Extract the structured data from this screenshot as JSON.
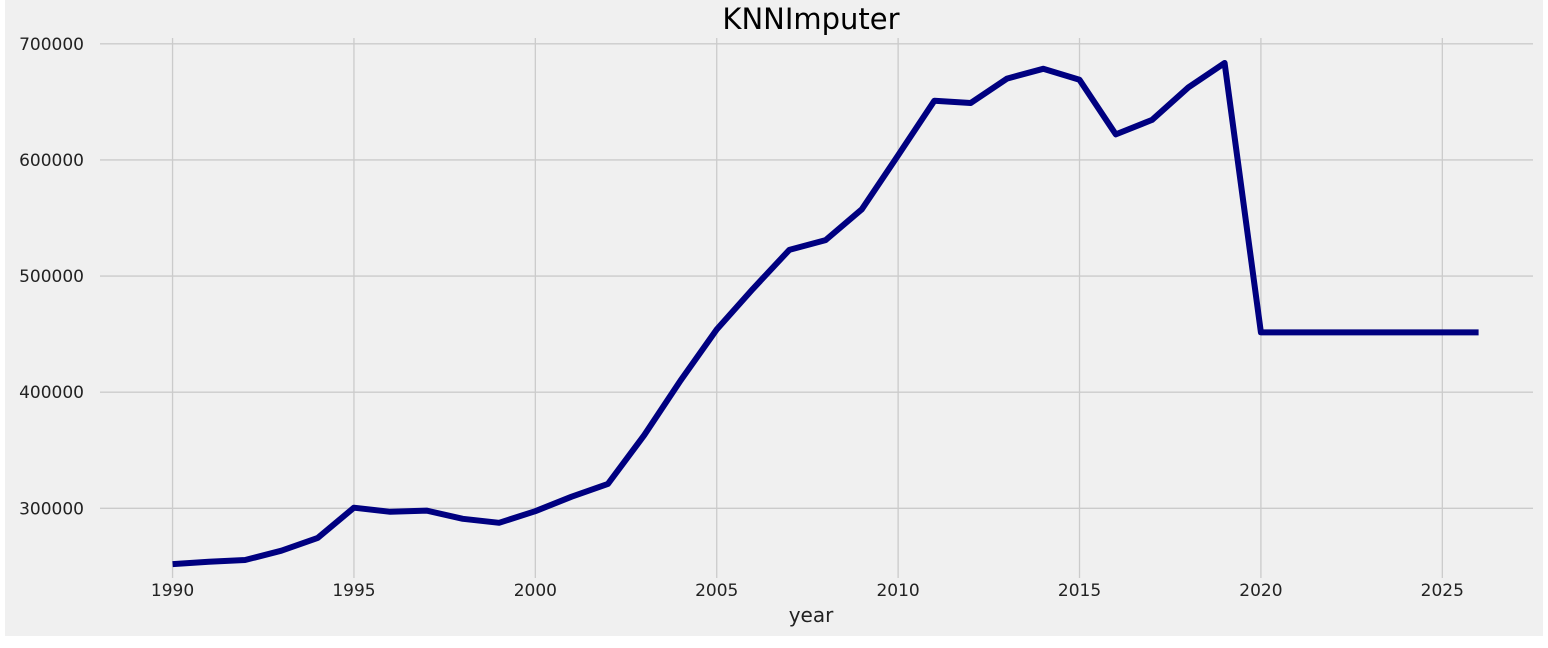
{
  "chart_data": {
    "type": "line",
    "title": "KNNImputer",
    "xlabel": "year",
    "ylabel": "",
    "grid": true,
    "xlim": [
      1988,
      2027.5
    ],
    "ylim": [
      240000,
      705000
    ],
    "xticks": [
      1990,
      1995,
      2000,
      2005,
      2010,
      2015,
      2020,
      2025
    ],
    "xtick_labels": [
      "1990",
      "1995",
      "2000",
      "2005",
      "2010",
      "2015",
      "2020",
      "2025"
    ],
    "yticks": [
      300000,
      400000,
      500000,
      600000,
      700000
    ],
    "ytick_labels": [
      "300000",
      "400000",
      "500000",
      "600000",
      "700000"
    ],
    "series": [
      {
        "color": "#000080",
        "x": [
          1990,
          1991,
          1992,
          1993,
          1994,
          1995,
          1996,
          1997,
          1998,
          1999,
          2000,
          2001,
          2002,
          2003,
          2004,
          2005,
          2006,
          2007,
          2008,
          2009,
          2010,
          2011,
          2012,
          2013,
          2014,
          2015,
          2016,
          2017,
          2018,
          2019,
          2020,
          2021,
          2022,
          2023,
          2024,
          2025,
          2026
        ],
        "values": [
          252000,
          254000,
          255500,
          263500,
          274500,
          300500,
          297000,
          298000,
          291000,
          287500,
          297500,
          310000,
          321000,
          363000,
          410000,
          454000,
          489000,
          522500,
          531000,
          557500,
          604000,
          651000,
          649000,
          670000,
          678500,
          669000,
          622000,
          634500,
          662500,
          683500,
          451500,
          451500,
          451500,
          451500,
          451500,
          451500,
          451500
        ]
      }
    ]
  }
}
